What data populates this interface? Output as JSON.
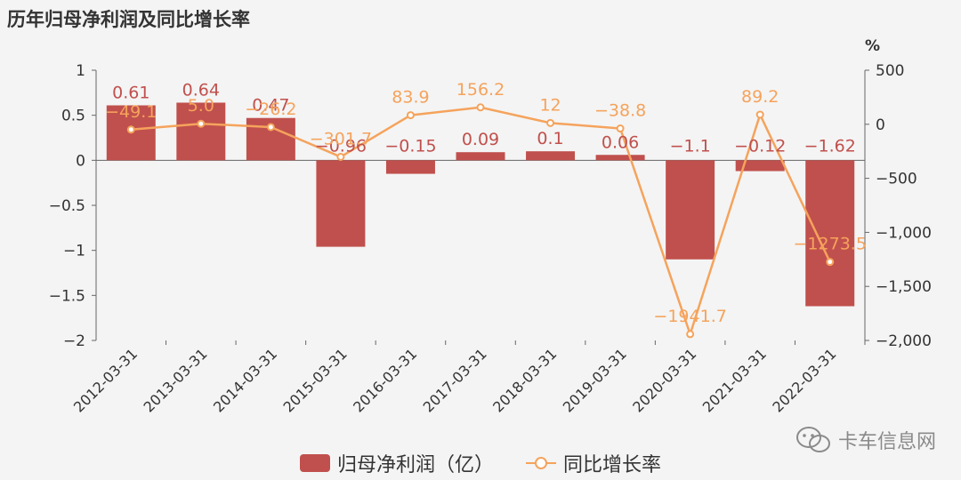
{
  "title": "历年归母净利润及同比增长率",
  "watermark": "卡车信息网",
  "colors": {
    "bar": "#c0504d",
    "line": "#f5a35c",
    "bar_label": "#c0504d",
    "line_label": "#f5a35c",
    "axis": "#666666"
  },
  "chart_data": {
    "type": "bar",
    "categories": [
      "2012-03-31",
      "2013-03-31",
      "2014-03-31",
      "2015-03-31",
      "2016-03-31",
      "2017-03-31",
      "2018-03-31",
      "2019-03-31",
      "2020-03-31",
      "2021-03-31",
      "2022-03-31"
    ],
    "series": [
      {
        "name": "归母净利润（亿）",
        "type": "bar",
        "axis": "left",
        "values": [
          0.61,
          0.64,
          0.47,
          -0.96,
          -0.15,
          0.09,
          0.1,
          0.06,
          -1.1,
          -0.12,
          -1.62
        ],
        "labels": [
          "0.61",
          "0.64",
          "0.47",
          "−0.96",
          "−0.15",
          "0.09",
          "0.1",
          "0.06",
          "−1.1",
          "−0.12",
          "−1.62"
        ]
      },
      {
        "name": "同比增长率",
        "type": "line",
        "axis": "right",
        "values": [
          -49.1,
          5.0,
          -26.2,
          -301.7,
          83.9,
          156.2,
          12,
          -38.8,
          -1941.7,
          89.2,
          -1273.5
        ],
        "labels": [
          "−49.1",
          "5.0",
          "−26.2",
          "−301.7",
          "83.9",
          "156.2",
          "12",
          "−38.8",
          "−1941.7",
          "89.2",
          "−1273.5"
        ]
      }
    ],
    "y_left": {
      "lim": [
        -2,
        1
      ],
      "ticks": [
        1,
        0.5,
        0,
        -0.5,
        -1,
        -1.5,
        -2
      ],
      "tick_labels": [
        "1",
        "0.5",
        "0",
        "−0.5",
        "−1",
        "−1.5",
        "−2"
      ]
    },
    "y_right": {
      "lim": [
        -2000,
        500
      ],
      "unit": "%",
      "ticks": [
        500,
        0,
        -500,
        -1000,
        -1500,
        -2000
      ],
      "tick_labels": [
        "500",
        "0",
        "−500",
        "−1,000",
        "−1,500",
        "−2,000"
      ]
    },
    "grid": false,
    "legend_position": "bottom-center"
  }
}
